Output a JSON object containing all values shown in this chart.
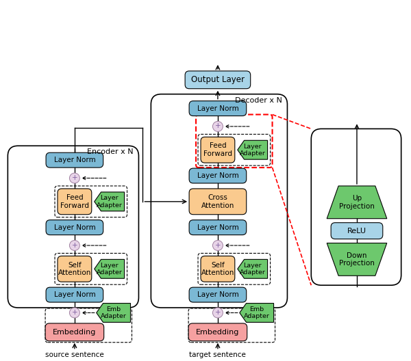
{
  "bg_color": "#ffffff",
  "colors": {
    "orange": "#FACA8E",
    "blue": "#7BB8D4",
    "green": "#6DC86D",
    "pink": "#F5A0A0",
    "purple_circle": "#D4B8D4",
    "light_blue": "#A8D4E8"
  },
  "encoder_label": "Encoder x N",
  "decoder_label": "Decoder x N",
  "source_label": "source sentence",
  "target_label": "target sentence"
}
